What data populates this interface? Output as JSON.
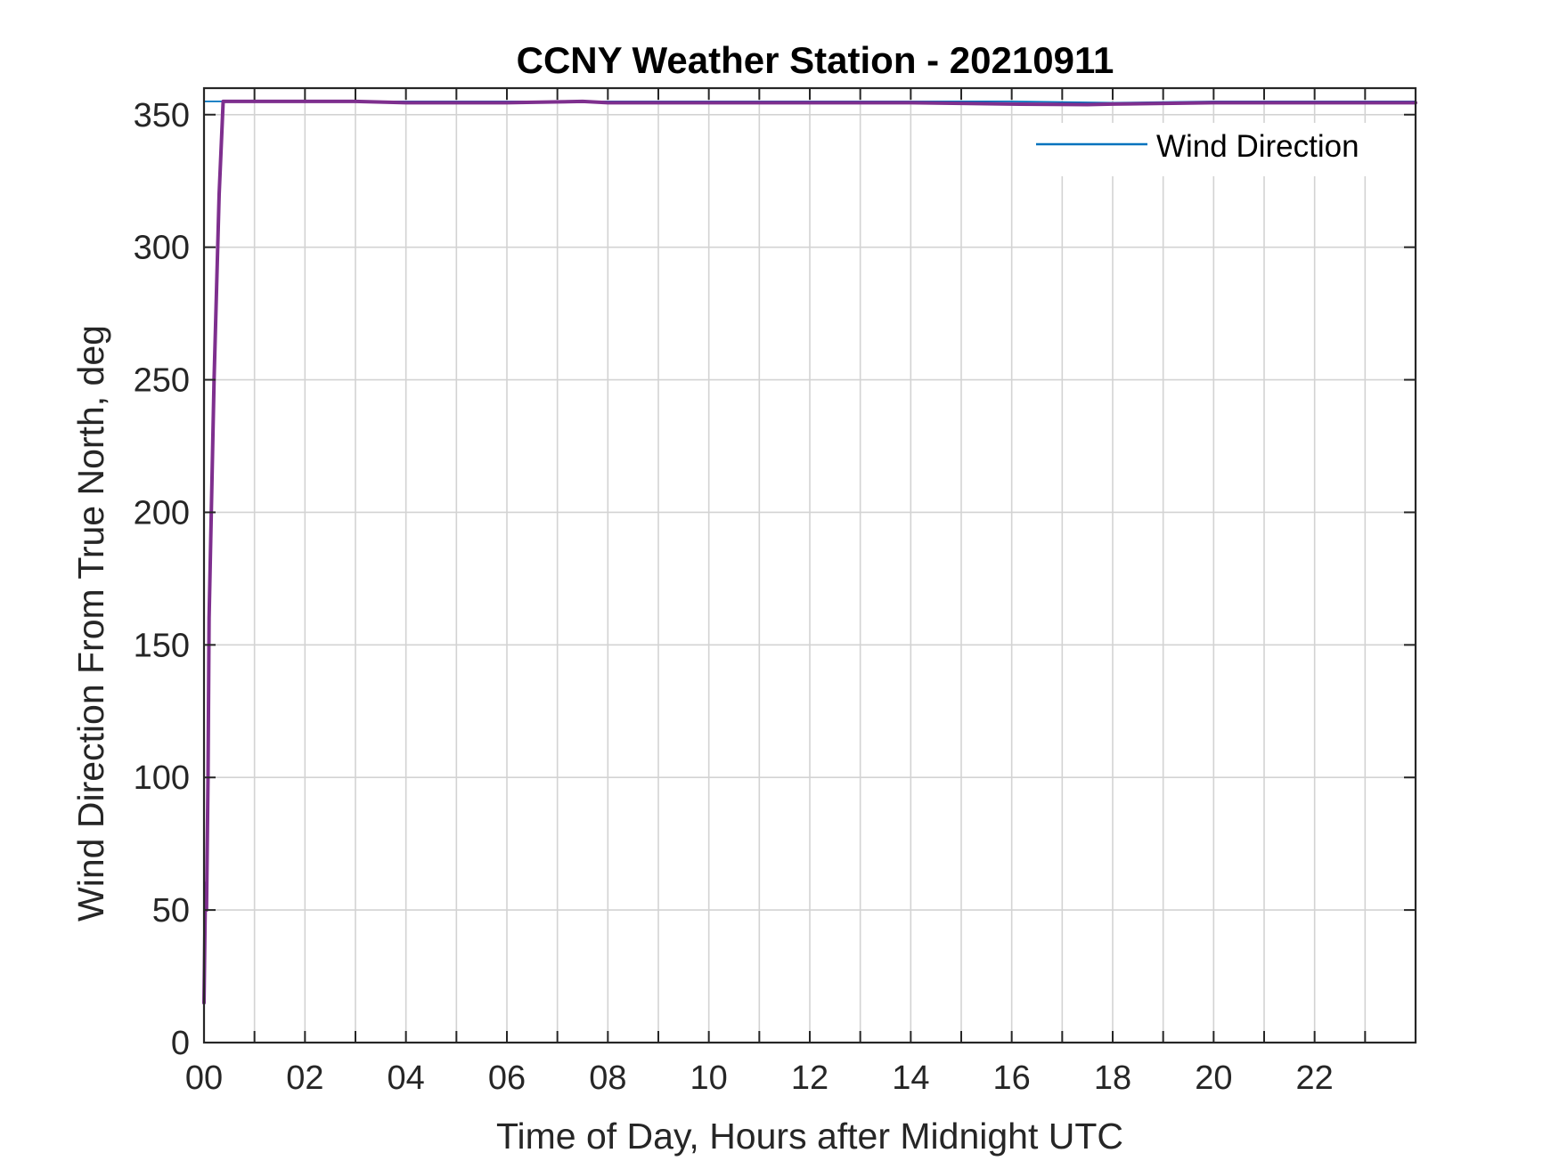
{
  "chart_data": {
    "type": "line",
    "title": "CCNY Weather Station - 20210911",
    "xlabel": "Time of Day, Hours after Midnight UTC",
    "ylabel": "Wind Direction From True North, deg",
    "xlim": [
      0,
      24
    ],
    "ylim": [
      0,
      360
    ],
    "xticks": [
      0,
      2,
      4,
      6,
      8,
      10,
      12,
      14,
      16,
      18,
      20,
      22
    ],
    "xtick_labels": [
      "00",
      "02",
      "04",
      "06",
      "08",
      "10",
      "12",
      "14",
      "16",
      "18",
      "20",
      "22"
    ],
    "x_minor_grid_step": 1,
    "yticks": [
      0,
      50,
      100,
      150,
      200,
      250,
      300,
      350
    ],
    "ytick_labels": [
      "0",
      "50",
      "100",
      "150",
      "200",
      "250",
      "300",
      "350"
    ],
    "grid": true,
    "legend": {
      "position": "top-right",
      "entries": [
        "Wind Direction"
      ]
    },
    "series": [
      {
        "name": "Wind Direction",
        "color": "#0072BD",
        "x": [
          0,
          0.05,
          0.1,
          0.2,
          0.3,
          0.4,
          0.5,
          1,
          2,
          3,
          4,
          6,
          8,
          10,
          12,
          14,
          16,
          18,
          20,
          22,
          24
        ],
        "y": [
          355,
          355,
          355,
          355,
          355,
          355,
          355,
          355,
          355,
          355,
          355,
          355,
          355,
          355,
          355,
          355,
          355,
          354.5,
          355,
          355,
          355
        ]
      },
      {
        "color": "#7E2F8E",
        "x": [
          0,
          0.03,
          0.05,
          0.08,
          0.1,
          0.2,
          0.3,
          0.38,
          0.42,
          0.5,
          1,
          2,
          3,
          4,
          6,
          7.5,
          8,
          10,
          12,
          14,
          16,
          17.5,
          18,
          20,
          22,
          24
        ],
        "y": [
          15,
          60,
          50,
          100,
          160,
          250,
          320,
          355,
          355,
          355,
          355,
          355,
          355,
          354.5,
          354.5,
          355,
          354.5,
          354.5,
          354.5,
          354.5,
          354,
          353.8,
          354,
          354.5,
          354.5,
          354.5
        ]
      }
    ]
  }
}
